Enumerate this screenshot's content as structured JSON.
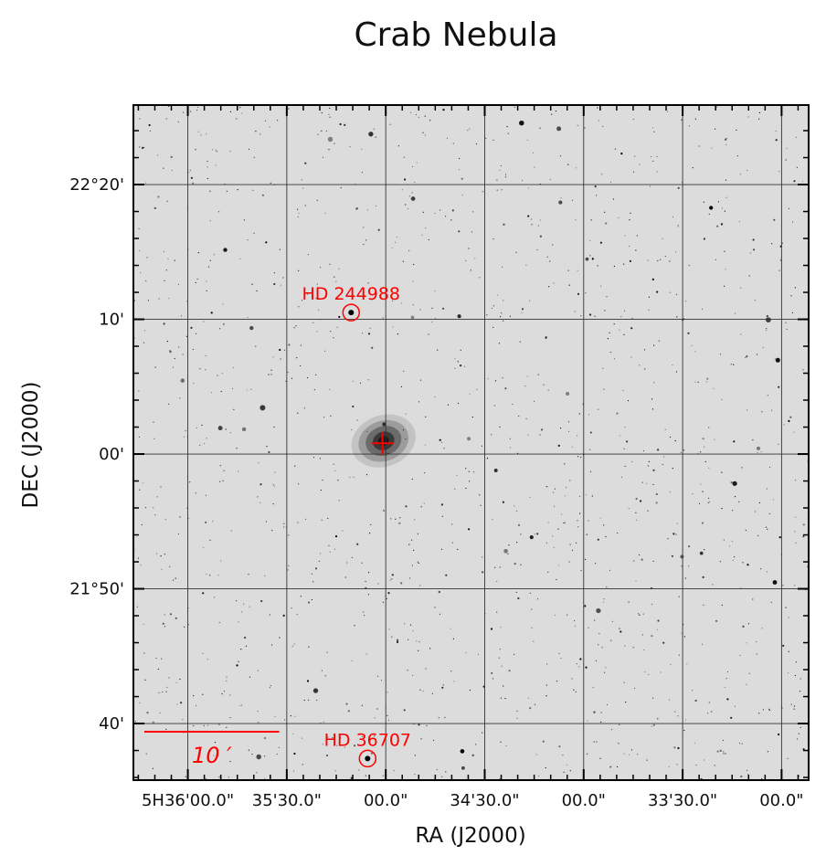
{
  "chart_data": {
    "type": "scatter",
    "title": "Crab Nebula",
    "xlabel": "RA (J2000)",
    "ylabel": "DEC (J2000)",
    "x_tick_labels": [
      "5H36'00.0\"",
      "35'30.0\"",
      "00.0\"",
      "34'30.0\"",
      "00.0\"",
      "33'30.0\"",
      "00.0\""
    ],
    "y_tick_labels": [
      "22°20'",
      "10'",
      "00'",
      "21°50'",
      "40'"
    ],
    "y_ticks_arcmin_from_22deg": [
      20,
      10,
      0,
      -10,
      -20
    ],
    "x_ticks_seconds_ra_offset": [
      60,
      30,
      0,
      -30,
      -60,
      -90,
      -120
    ],
    "xlim_seconds": [
      76.5,
      -128.2
    ],
    "ylim_arcmin": [
      -24.2,
      25.9
    ],
    "grid": true,
    "image": "DSS greyscale sky field, inverted (stars black)",
    "target_marker": {
      "symbol": "+",
      "color": "#ff0000",
      "ra_offset_s": 1.0,
      "dec_offset_arcmin": 0.8
    },
    "annotated_stars": [
      {
        "name": "HD 244988",
        "ra_offset_s": 10.5,
        "dec_offset_arcmin": 10.5,
        "color": "#ff0000"
      },
      {
        "name": "HD 36707",
        "ra_offset_s": 5.5,
        "dec_offset_arcmin": -22.6,
        "color": "#ff0000"
      }
    ],
    "scale_bar": {
      "label": "10 ′",
      "length_arcmin": 10,
      "color": "#ff0000"
    }
  }
}
